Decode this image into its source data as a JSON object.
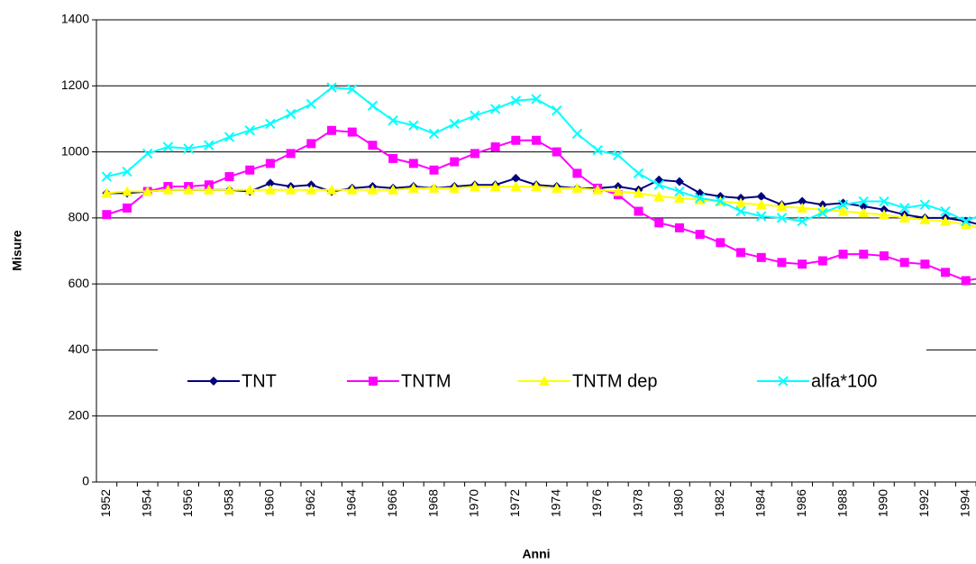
{
  "chart_data": {
    "type": "line",
    "x_label": "Anni",
    "y_label": "Misure",
    "categories": [
      "1952",
      null,
      "1954",
      null,
      "1956",
      null,
      "1958",
      null,
      "1960",
      null,
      "1962",
      null,
      "1964",
      null,
      "1966",
      null,
      "1968",
      null,
      "1970",
      null,
      "1972",
      null,
      "1974",
      null,
      "1976",
      null,
      "1978",
      null,
      "1980",
      null,
      "1982",
      null,
      "1984",
      null,
      "1986",
      null,
      "1988",
      null,
      "1990",
      null,
      "1992",
      null,
      "1994",
      null
    ],
    "series": [
      {
        "name": "TNT",
        "color": "#000080",
        "marker": "diamond",
        "values": [
          875,
          875,
          880,
          885,
          885,
          885,
          885,
          880,
          905,
          895,
          900,
          880,
          890,
          895,
          890,
          895,
          890,
          895,
          900,
          900,
          920,
          900,
          895,
          890,
          890,
          895,
          885,
          915,
          910,
          875,
          865,
          860,
          865,
          840,
          850,
          840,
          845,
          835,
          825,
          810,
          800,
          800,
          790,
          775
        ]
      },
      {
        "name": "TNTM",
        "color": "#ff00ff",
        "marker": "square",
        "values": [
          810,
          830,
          880,
          895,
          895,
          900,
          925,
          945,
          965,
          995,
          1025,
          1065,
          1060,
          1020,
          980,
          965,
          945,
          970,
          995,
          1015,
          1035,
          1035,
          1000,
          935,
          890,
          870,
          820,
          785,
          770,
          750,
          725,
          695,
          680,
          665,
          660,
          670,
          690,
          690,
          685,
          665,
          660,
          635,
          610,
          620
        ]
      },
      {
        "name": "TNTM dep",
        "color": "#ffff00",
        "marker": "triangle",
        "values": [
          875,
          880,
          880,
          885,
          885,
          885,
          885,
          885,
          885,
          885,
          885,
          885,
          885,
          885,
          885,
          890,
          890,
          890,
          895,
          895,
          895,
          895,
          890,
          890,
          885,
          880,
          875,
          865,
          860,
          855,
          850,
          845,
          840,
          835,
          830,
          825,
          820,
          815,
          810,
          800,
          795,
          790,
          780,
          765
        ]
      },
      {
        "name": "alfa*100",
        "color": "#00ffff",
        "marker": "x",
        "values": [
          925,
          940,
          995,
          1015,
          1010,
          1020,
          1045,
          1065,
          1085,
          1115,
          1145,
          1195,
          1190,
          1140,
          1095,
          1080,
          1055,
          1085,
          1110,
          1130,
          1155,
          1160,
          1125,
          1055,
          1005,
          990,
          935,
          900,
          880,
          860,
          850,
          820,
          805,
          800,
          790,
          815,
          840,
          850,
          850,
          830,
          840,
          820,
          790,
          815
        ]
      }
    ],
    "ylim": [
      0,
      1400
    ],
    "yticks": [
      0,
      200,
      400,
      600,
      800,
      1000,
      1200,
      1400
    ],
    "grid": true
  }
}
